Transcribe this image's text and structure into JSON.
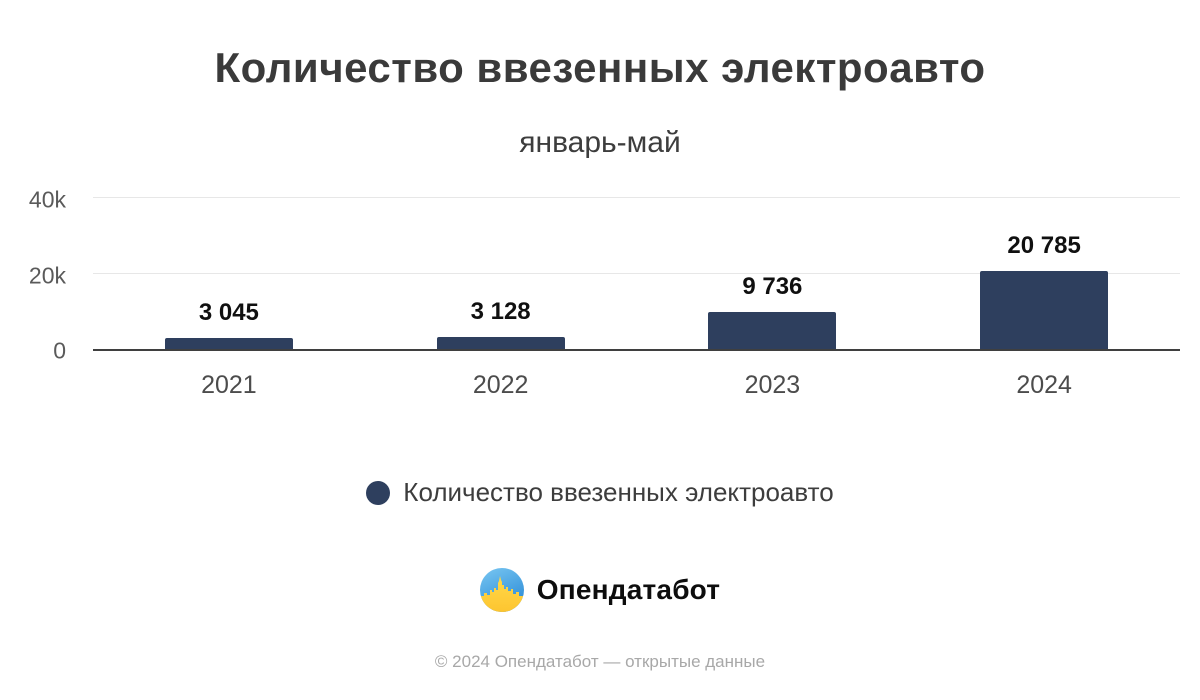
{
  "chart_data": {
    "type": "bar",
    "title": "Количество ввезенных электроавто",
    "subtitle": "январь-май",
    "categories": [
      "2021",
      "2022",
      "2023",
      "2024"
    ],
    "values": [
      3045,
      3128,
      9736,
      20785
    ],
    "value_labels": [
      "3 045",
      "3 128",
      "9 736",
      "20 785"
    ],
    "ylim": [
      0,
      40000
    ],
    "yticks": [
      {
        "value": 0,
        "label": "0"
      },
      {
        "value": 20000,
        "label": "20k"
      },
      {
        "value": 40000,
        "label": "40k"
      }
    ],
    "grid": "horizontal",
    "bar_color": "#2e3f5e",
    "axis_line_color": "#3f3f3f",
    "gridline_color": "#e7e7e7",
    "legend": {
      "position": "bottom",
      "items": [
        {
          "label": "Количество ввезенных электроавто",
          "color": "#2e3f5e"
        }
      ]
    }
  },
  "branding": {
    "logo_text": "Опендатабот",
    "logo_icon": "opendatabot-circle-skyline",
    "logo_colors": {
      "blue_top": "#79c7f2",
      "blue_bottom": "#2f8ed8",
      "yellow_top": "#ffd94a",
      "yellow_bottom": "#fdc530"
    }
  },
  "footer": {
    "copyright": "© 2024 Опендатабот — открытые данные"
  }
}
